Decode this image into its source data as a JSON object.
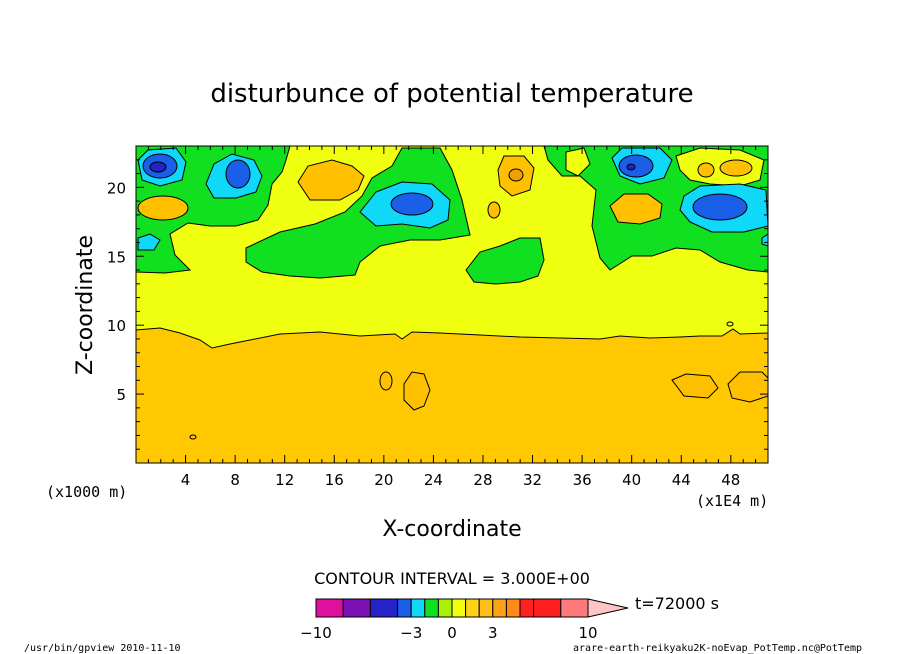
{
  "chart_data": {
    "type": "contour",
    "title": "disturbunce of potential temperature",
    "xlabel": "X-coordinate",
    "ylabel": "Z-coordinate",
    "x_unit_note": "(x1000 m)",
    "x_scale_note": "(x1E4 m)",
    "xlim": [
      0,
      51
    ],
    "ylim": [
      0,
      23
    ],
    "x_ticks": [
      4,
      8,
      12,
      16,
      20,
      24,
      28,
      32,
      36,
      40,
      44,
      48
    ],
    "y_ticks": [
      5,
      10,
      15,
      20
    ],
    "contour_interval_text": "CONTOUR INTERVAL = 3.000E+00",
    "time_label": "t=72000 s",
    "colorbar": {
      "tick_labels": [
        "-10",
        "-3",
        "0",
        "3",
        "10"
      ],
      "levels": [
        -10,
        -8,
        -6,
        -4,
        -3,
        -2,
        -1,
        0,
        1,
        2,
        3,
        4,
        5,
        6,
        8,
        10
      ],
      "colors": [
        "#e0109e",
        "#7b11b5",
        "#2522c8",
        "#1a5fe8",
        "#10d8f8",
        "#10e020",
        "#a6f200",
        "#f0ff10",
        "#ffd21a",
        "#ffbe1a",
        "#ffa21a",
        "#ff8a1a",
        "#ff2020",
        "#ff2020",
        "#ff7a7a",
        "#ffc4c4"
      ]
    },
    "fills": {
      "background": "#ffc800",
      "layer_mid": "#f0ff10",
      "green": "#10e020",
      "cyan": "#10d8f8",
      "blue": "#1a5fe8",
      "darkblue": "#2522c8",
      "orange": "#ffc000",
      "darkorange": "#f0a000"
    }
  },
  "footer": {
    "left": "/usr/bin/gpview  2010-11-10",
    "right": "arare-earth-reikyaku2K-noEvap_PotTemp.nc@PotTemp"
  }
}
